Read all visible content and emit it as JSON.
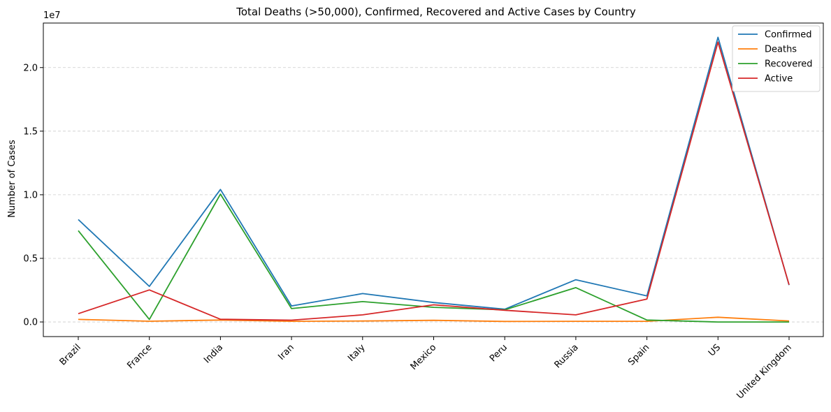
{
  "chart_data": {
    "type": "line",
    "title": "Total Deaths (>50,000), Confirmed, Recovered and Active Cases by Country",
    "xlabel": "",
    "ylabel": "Number of Cases",
    "y_offset_label": "1e7",
    "categories": [
      "Brazil",
      "France",
      "India",
      "Iran",
      "Italy",
      "Mexico",
      "Peru",
      "Russia",
      "Spain",
      "US",
      "United Kingdom"
    ],
    "ylim": [
      -1150000,
      23500000
    ],
    "y_ticks": [
      0,
      5000000,
      10000000,
      15000000,
      20000000
    ],
    "y_tick_labels": [
      "0.0",
      "0.5",
      "1.0",
      "1.5",
      "2.0"
    ],
    "grid": "horizontal dashed",
    "legend_position": "top-right",
    "series": [
      {
        "name": "Confirmed",
        "color": "#1f77b4",
        "values": [
          8050000,
          2800000,
          10420000,
          1260000,
          2230000,
          1530000,
          1000000,
          3320000,
          2050000,
          22380000,
          2900000
        ]
      },
      {
        "name": "Deaths",
        "color": "#ff7f0e",
        "values": [
          200000,
          60000,
          150000,
          50000,
          75000,
          130000,
          40000,
          55000,
          50000,
          370000,
          80000
        ]
      },
      {
        "name": "Recovered",
        "color": "#2ca02c",
        "values": [
          7180000,
          200000,
          10050000,
          1050000,
          1600000,
          1150000,
          950000,
          2700000,
          150000,
          0,
          0
        ]
      },
      {
        "name": "Active",
        "color": "#d62728",
        "values": [
          650000,
          2520000,
          210000,
          140000,
          560000,
          1350000,
          920000,
          560000,
          1800000,
          22000000,
          2930000
        ]
      }
    ]
  }
}
